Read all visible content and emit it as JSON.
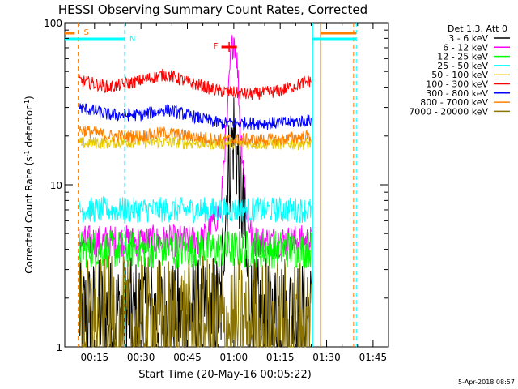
{
  "chart_data": {
    "type": "line",
    "title": "HESSI Observing Summary Count Rates, Corrected",
    "xlabel": "Start Time (20-May-16 00:05:22)",
    "ylabel_main": "Corrected Count Rate (s",
    "ylabel_sup1": "-1",
    "ylabel_mid": " detector",
    "ylabel_sup2": "-1",
    "ylabel_end": ")",
    "y_scale": "log",
    "ylim": [
      1,
      100
    ],
    "xlim_minutes": [
      5.37,
      110.0
    ],
    "x_ticks": [
      {
        "value": 15,
        "label": "00:15"
      },
      {
        "value": 30,
        "label": "00:30"
      },
      {
        "value": 45,
        "label": "00:45"
      },
      {
        "value": 60,
        "label": "01:00"
      },
      {
        "value": 75,
        "label": "01:15"
      },
      {
        "value": 90,
        "label": "01:30"
      },
      {
        "value": 105,
        "label": "01:45"
      }
    ],
    "y_ticks": [
      {
        "value": 1,
        "label": "1"
      },
      {
        "value": 10,
        "label": "10"
      },
      {
        "value": 100,
        "label": "100"
      }
    ],
    "legend_header": "Det 1,3, Att 0",
    "legend": [
      {
        "label": "3 - 6 keV",
        "color": "#000000"
      },
      {
        "label": "6 - 12 keV",
        "color": "#ff00ff"
      },
      {
        "label": "12 - 25 keV",
        "color": "#00ff00"
      },
      {
        "label": "25 - 50 keV",
        "color": "#00ffff"
      },
      {
        "label": "50 - 100 keV",
        "color": "#e6c800"
      },
      {
        "label": "100 - 300 keV",
        "color": "#ff0000"
      },
      {
        "label": "300 - 800 keV",
        "color": "#0000ff"
      },
      {
        "label": "800 - 7000 keV",
        "color": "#ff8000"
      },
      {
        "label": "7000 - 20000 keV",
        "color": "#8a7300"
      }
    ],
    "series": [
      {
        "name": "3 - 6 keV",
        "color": "#000000",
        "x": [
          10,
          30,
          50,
          56,
          58,
          60,
          62,
          64,
          66,
          80,
          85
        ],
        "y": [
          1.6,
          1.6,
          1.6,
          1.8,
          10,
          21,
          10,
          3,
          1.6,
          1.6,
          1.6
        ]
      },
      {
        "name": "6 - 12 keV",
        "color": "#ff00ff",
        "x": [
          10,
          30,
          50,
          56,
          58,
          59,
          60,
          61,
          62,
          64,
          66,
          80,
          85
        ],
        "y": [
          4.5,
          4.5,
          4.5,
          7,
          25,
          60,
          82,
          60,
          22,
          7,
          4.5,
          4.5,
          4.5
        ]
      },
      {
        "name": "12 - 25 keV",
        "color": "#00ff00",
        "x": [
          10,
          30,
          50,
          70,
          85
        ],
        "y": [
          4,
          4,
          4,
          4,
          4
        ]
      },
      {
        "name": "25 - 50 keV",
        "color": "#00ffff",
        "x": [
          10,
          30,
          50,
          70,
          85
        ],
        "y": [
          7,
          7,
          7,
          7,
          7
        ]
      },
      {
        "name": "50 - 100 keV",
        "color": "#e6c800",
        "x": [
          10,
          30,
          50,
          70,
          85
        ],
        "y": [
          18,
          18.5,
          18,
          18,
          18
        ]
      },
      {
        "name": "100 - 300 keV",
        "color": "#ff0000",
        "x": [
          10,
          20,
          30,
          38,
          45,
          55,
          65,
          75,
          85
        ],
        "y": [
          44,
          40,
          44,
          48,
          43,
          38,
          36,
          38,
          44
        ]
      },
      {
        "name": "300 - 800 keV",
        "color": "#0000ff",
        "x": [
          10,
          20,
          30,
          38,
          45,
          55,
          65,
          75,
          85
        ],
        "y": [
          30,
          27,
          27,
          29,
          27,
          24,
          24,
          24,
          25
        ]
      },
      {
        "name": "800 - 7000 keV",
        "color": "#ff8000",
        "x": [
          10,
          20,
          30,
          38,
          45,
          55,
          65,
          75,
          85
        ],
        "y": [
          22,
          20,
          20,
          21,
          20,
          19,
          19,
          19,
          20
        ]
      },
      {
        "name": "7000 - 20000 keV",
        "color": "#8a7300",
        "x": [
          10,
          30,
          50,
          70,
          85
        ],
        "y": [
          1.3,
          1.3,
          1.3,
          1.3,
          1.3
        ]
      }
    ],
    "annotations": [
      {
        "label": "S",
        "x": 9.7,
        "color": "#ff8000"
      },
      {
        "label": "N",
        "x": 24.7,
        "color": "#00ffff"
      },
      {
        "label": "F",
        "x": 58.5,
        "color": "#ff0000"
      }
    ],
    "timestamp": "5-Apr-2018 08:57"
  }
}
